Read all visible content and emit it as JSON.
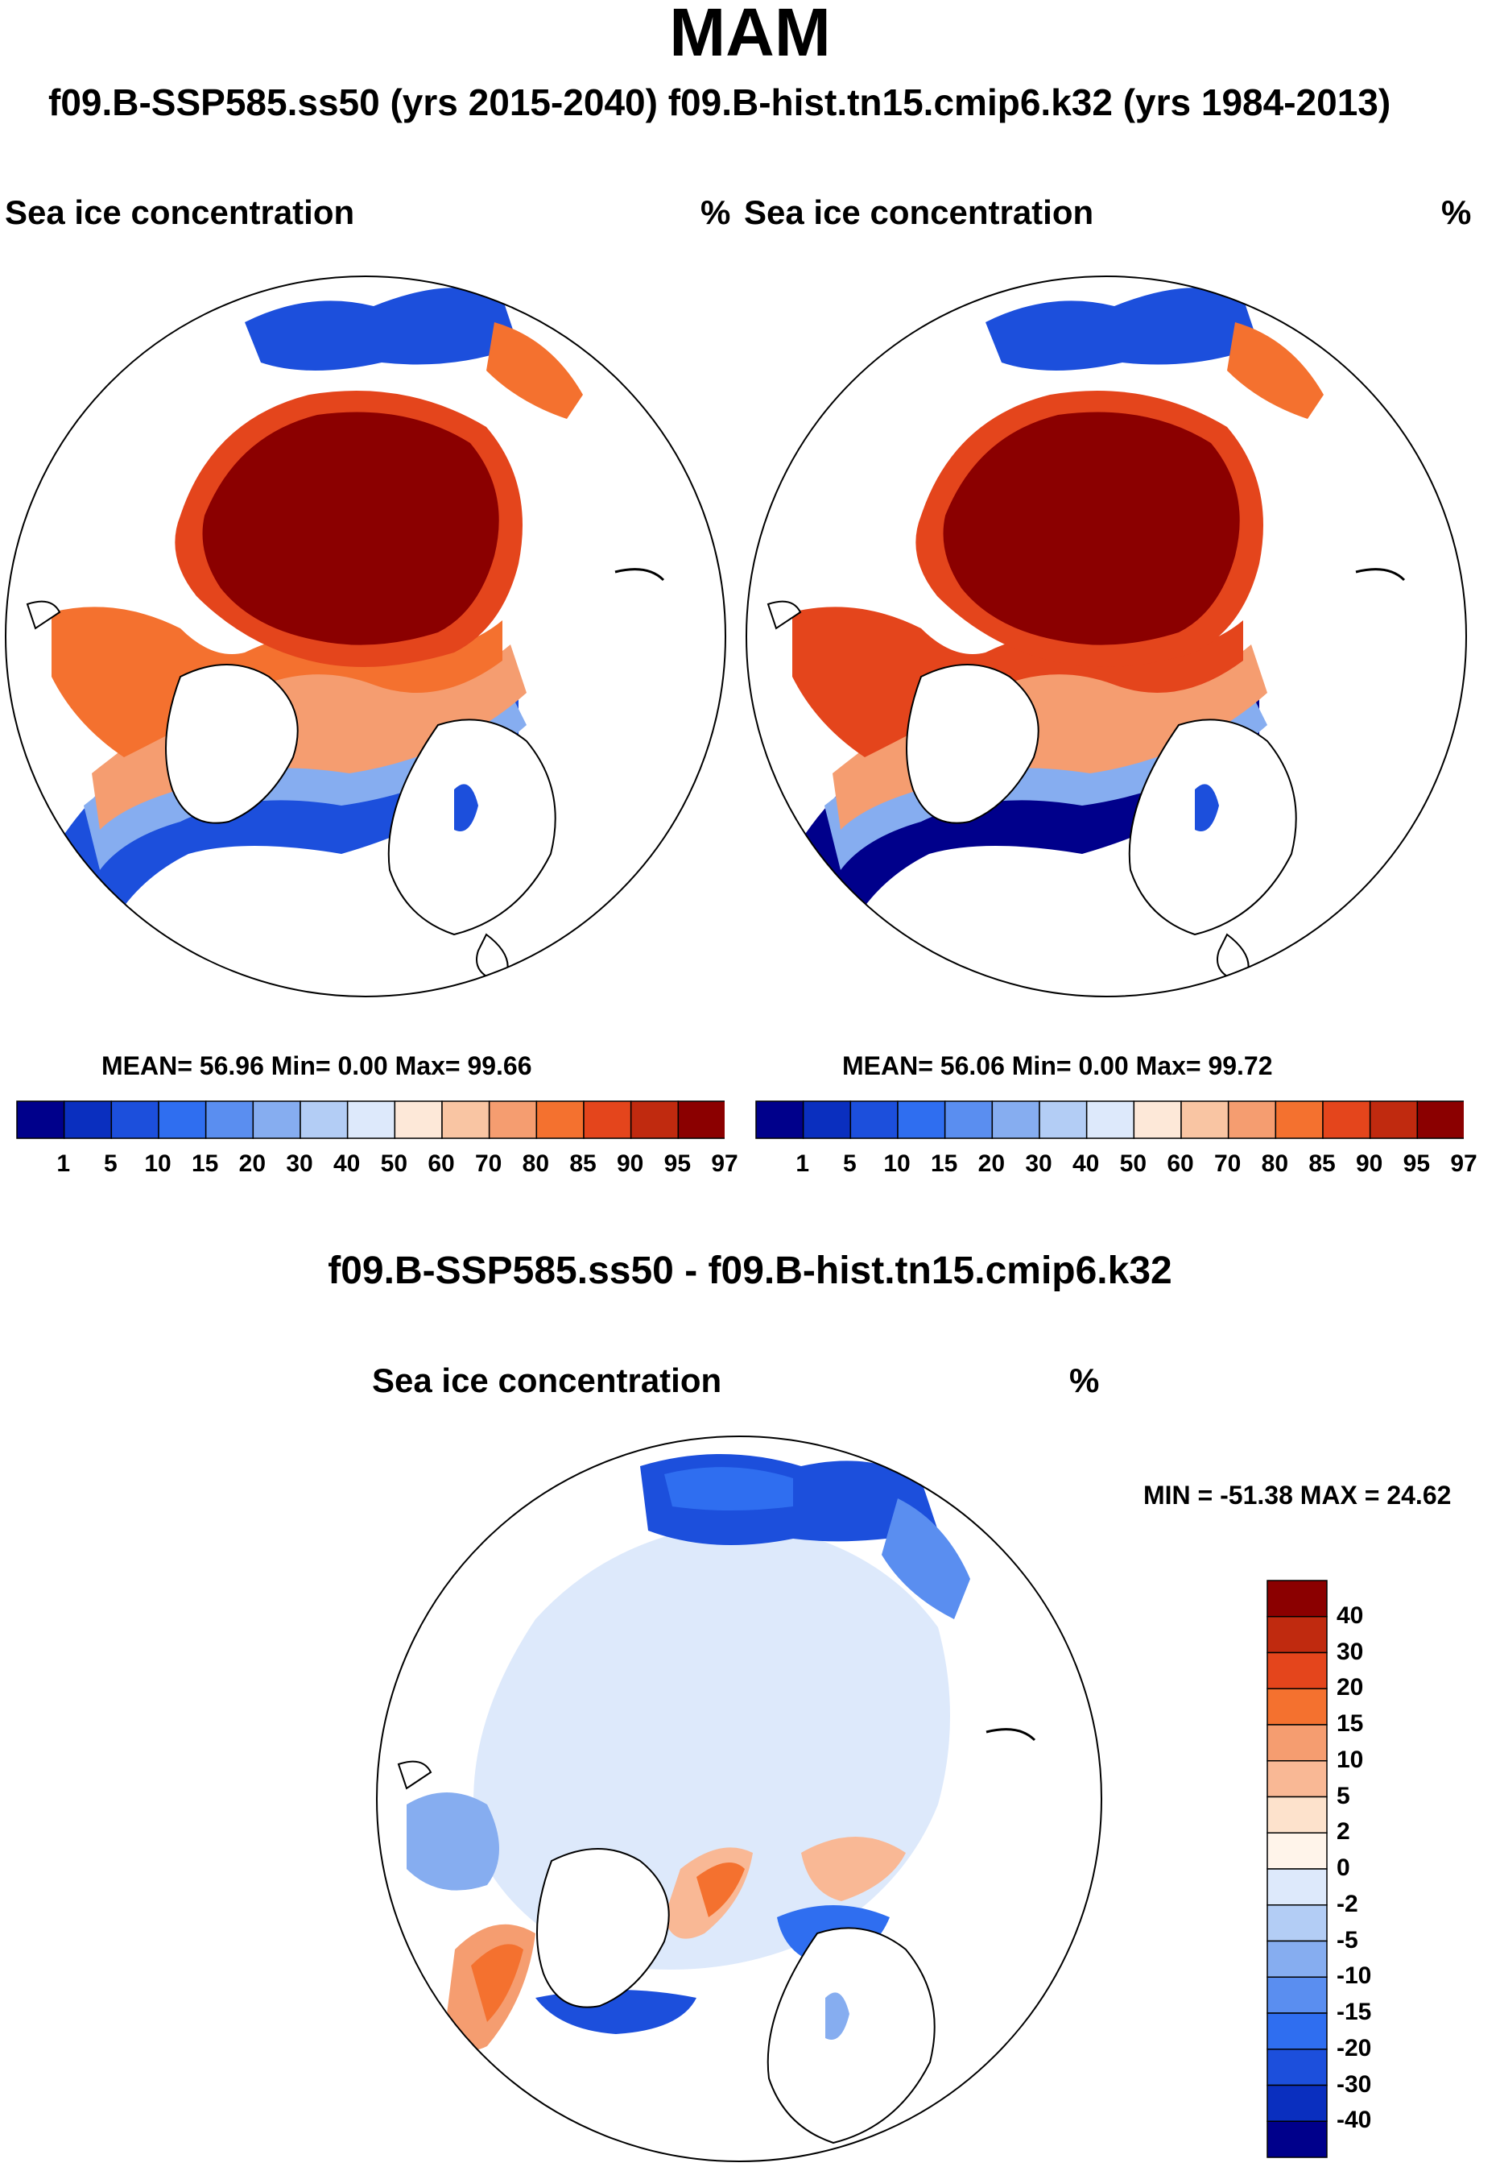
{
  "figure": {
    "season": "MAM",
    "header": "f09.B-SSP585.ss50 (yrs 2015-2040)  f09.B-hist.tn15.cmip6.k32 (yrs 1984-2013)"
  },
  "panels": [
    {
      "id": "ssp585",
      "variable": "Sea ice concentration",
      "units": "%",
      "stats": {
        "mean": "56.96",
        "min": "0.00",
        "max": "99.66"
      },
      "stats_text": "MEAN=  56.96  Min=   0.00  Max=  99.66"
    },
    {
      "id": "hist",
      "variable": "Sea ice concentration",
      "units": "%",
      "stats": {
        "mean": "56.06",
        "min": "0.00",
        "max": "99.72"
      },
      "stats_text": "MEAN=  56.06  Min=   0.00  Max=  99.72"
    }
  ],
  "colorbar_abs": {
    "levels": [
      "1",
      "5",
      "10",
      "15",
      "20",
      "30",
      "40",
      "50",
      "60",
      "70",
      "80",
      "85",
      "90",
      "95",
      "97"
    ],
    "colors": [
      "#00008b",
      "#0a2fbf",
      "#1c4fdc",
      "#2f6ef0",
      "#5a8ef0",
      "#86adf0",
      "#b3cdf5",
      "#dde9fb",
      "#fde8d8",
      "#f9c5a3",
      "#f59d70",
      "#f4712f",
      "#e4451c",
      "#c02a0f",
      "#8b0000"
    ]
  },
  "difference": {
    "title": "f09.B-SSP585.ss50 - f09.B-hist.tn15.cmip6.k32",
    "variable": "Sea ice concentration",
    "units": "%",
    "minmax_text": "MIN = -51.38 MAX =  24.62",
    "min": -51.38,
    "max": 24.62
  },
  "colorbar_diff": {
    "levels": [
      "40",
      "30",
      "20",
      "15",
      "10",
      "5",
      "2",
      "0",
      "-2",
      "-5",
      "-10",
      "-15",
      "-20",
      "-30",
      "-40"
    ],
    "colors": [
      "#8b0000",
      "#c02a0f",
      "#e4451c",
      "#f4712f",
      "#f59d70",
      "#f9b895",
      "#fde2cc",
      "#fff4ea",
      "#dde9fb",
      "#b3cdf5",
      "#86adf0",
      "#5a8ef0",
      "#2f6ef0",
      "#1c4fdc",
      "#0a2fbf",
      "#00008b"
    ]
  },
  "chart_data": {
    "type": "heatmap",
    "projection": "north polar stereographic",
    "season": "MAM",
    "maps": [
      {
        "name": "f09.B-SSP585.ss50 (yrs 2015-2040)",
        "variable": "Sea ice concentration",
        "units": "%",
        "mean": 56.96,
        "min": 0.0,
        "max": 99.66
      },
      {
        "name": "f09.B-hist.tn15.cmip6.k32 (yrs 1984-2013)",
        "variable": "Sea ice concentration",
        "units": "%",
        "mean": 56.06,
        "min": 0.0,
        "max": 99.72
      },
      {
        "name": "f09.B-SSP585.ss50 - f09.B-hist.tn15.cmip6.k32",
        "variable": "Sea ice concentration",
        "units": "%",
        "min": -51.38,
        "max": 24.62
      }
    ],
    "contour_levels_abs": [
      1,
      5,
      10,
      15,
      20,
      30,
      40,
      50,
      60,
      70,
      80,
      85,
      90,
      95,
      97
    ],
    "contour_levels_diff": [
      40,
      30,
      20,
      15,
      10,
      5,
      2,
      0,
      -2,
      -5,
      -10,
      -15,
      -20,
      -30,
      -40
    ]
  }
}
